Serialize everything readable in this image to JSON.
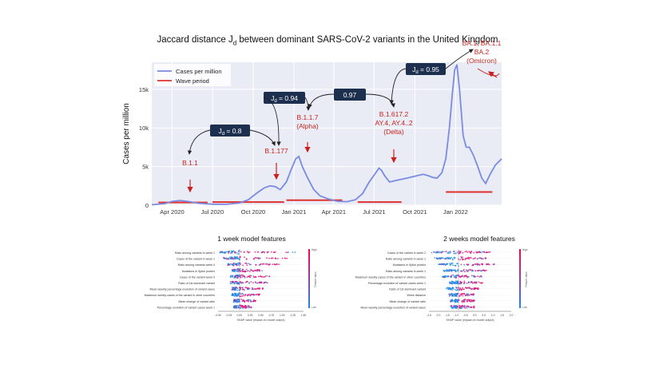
{
  "top_chart": {
    "title": "Jaccard distance J",
    "title_sub": "d",
    "title_rest": " between dominant SARS-CoV-2 variants in the United Kingdom",
    "ylabel": "Cases per million",
    "legend": [
      {
        "label": "Cases per million",
        "color": "#7b8be0"
      },
      {
        "label": "Wave period",
        "color": "#e0312f"
      }
    ],
    "colors": {
      "line": "#7b8be0",
      "wave": "#e0312f",
      "plot_bg": "#e9ecf5",
      "grid": "#ffffff",
      "box": "#1c2f4f",
      "variant": "#c8221e"
    },
    "variant_labels": [
      {
        "lines": [
          "B.1.1"
        ]
      },
      {
        "lines": [
          "B.1.177"
        ]
      },
      {
        "lines": [
          "B.1.1.7",
          "(Alpha)"
        ]
      },
      {
        "lines": [
          "B.1.617.2",
          "AY.4, AY.4..2",
          "(Delta)"
        ]
      },
      {
        "lines": [
          "BA.1, BA.1.1",
          "BA.2",
          "(Omicron)"
        ]
      }
    ],
    "jaccard_boxes": [
      {
        "main": "J",
        "sub": "d",
        "rest": " = 0.8"
      },
      {
        "main": "J",
        "sub": "d",
        "rest": " = 0.94"
      },
      {
        "main": "",
        "sub": "",
        "rest": "0.97"
      },
      {
        "main": "J",
        "sub": "d",
        "rest": " = 0.95"
      }
    ]
  },
  "chart_data": [
    {
      "type": "line",
      "title": "Jaccard distance Jd between dominant SARS-CoV-2 variants in the United Kingdom",
      "ylabel": "Cases per million",
      "xlabel": "",
      "x_ticks": [
        "Apr 2020",
        "Jul 2020",
        "Oct 2020",
        "Jan 2021",
        "Apr 2021",
        "Jul 2021",
        "Oct 2021",
        "Jan 2022"
      ],
      "y_ticks": [
        "0",
        "5k",
        "10k",
        "15k"
      ],
      "ylim": [
        0,
        18500
      ],
      "xlim": [
        "2020-02-15",
        "2022-04-15"
      ],
      "grid": true,
      "legend_position": "top-left",
      "series": [
        {
          "name": "Cases per million",
          "x": [
            "2020-02-15",
            "2020-03-15",
            "2020-04-01",
            "2020-04-20",
            "2020-05-10",
            "2020-06-01",
            "2020-07-01",
            "2020-08-01",
            "2020-09-01",
            "2020-09-20",
            "2020-10-10",
            "2020-10-25",
            "2020-11-08",
            "2020-11-20",
            "2020-12-01",
            "2020-12-15",
            "2020-12-25",
            "2021-01-05",
            "2021-01-12",
            "2021-01-20",
            "2021-02-01",
            "2021-02-15",
            "2021-03-01",
            "2021-03-20",
            "2021-04-10",
            "2021-05-01",
            "2021-05-20",
            "2021-06-05",
            "2021-06-20",
            "2021-07-05",
            "2021-07-12",
            "2021-07-18",
            "2021-07-25",
            "2021-08-05",
            "2021-08-20",
            "2021-09-05",
            "2021-09-20",
            "2021-10-05",
            "2021-10-20",
            "2021-11-01",
            "2021-11-10",
            "2021-11-20",
            "2021-12-01",
            "2021-12-10",
            "2021-12-18",
            "2021-12-24",
            "2021-12-30",
            "2022-01-04",
            "2022-01-10",
            "2022-01-18",
            "2022-01-25",
            "2022-02-01",
            "2022-02-10",
            "2022-02-20",
            "2022-03-01",
            "2022-03-10",
            "2022-03-20",
            "2022-04-01",
            "2022-04-15"
          ],
          "y": [
            50,
            200,
            500,
            600,
            450,
            250,
            120,
            100,
            300,
            700,
            1600,
            2200,
            2500,
            2400,
            2000,
            3000,
            4500,
            6000,
            6300,
            5000,
            3500,
            2000,
            1200,
            800,
            500,
            450,
            700,
            1500,
            3000,
            4200,
            4800,
            4500,
            3800,
            3000,
            3200,
            3400,
            3600,
            3800,
            4000,
            3800,
            3600,
            3500,
            4200,
            6000,
            10000,
            14000,
            17500,
            18200,
            15000,
            9000,
            7500,
            7500,
            6500,
            5000,
            3500,
            2800,
            4000,
            5200,
            6000
          ]
        },
        {
          "name": "Wave period",
          "segments": [
            {
              "x": [
                "2020-03-01",
                "2020-06-20"
              ],
              "y": 350
            },
            {
              "x": [
                "2020-07-01",
                "2020-12-10"
              ],
              "y": 400
            },
            {
              "x": [
                "2020-12-15",
                "2021-04-20"
              ],
              "y": 650
            },
            {
              "x": [
                "2021-05-25",
                "2021-09-01"
              ],
              "y": 400
            },
            {
              "x": [
                "2021-12-10",
                "2022-03-25"
              ],
              "y": 1700
            }
          ]
        }
      ]
    },
    {
      "type": "scatter",
      "title": "1 week model features",
      "xlabel": "SHAP value (impact on model output)",
      "colorbar": [
        "High",
        "Low"
      ],
      "colorbar_label": "Feature value",
      "x_ticks": [
        "-0.50",
        "-0.25",
        "0.00",
        "0.25",
        "0.50",
        "0.75",
        "1.00",
        "1.25",
        "1.50"
      ],
      "features": [
        "Ratio among variants in week 1",
        "Cases of the variant in week 1",
        "Ratio among variants week 0",
        "Mutations in Spike protein",
        "Cases of the variant week 0",
        "Ratio of 1st dominant variant",
        "Mean weekly percentage evolution of variant cases",
        "Maximum weekly cases of the variant in other countries",
        "Mean change of variant ratio",
        "Percentage evolution of variant cases week 1"
      ]
    },
    {
      "type": "scatter",
      "title": "2 weeks model features",
      "xlabel": "SHAP value (impact on model output)",
      "colorbar": [
        "High",
        "Low"
      ],
      "colorbar_label": "Feature value",
      "x_ticks": [
        "-2.5",
        "-2.0",
        "-1.5",
        "-1.0",
        "-0.5",
        "0.0",
        "0.5",
        "1.0",
        "1.5",
        "2.0"
      ],
      "features": [
        "Cases of the variant in week 2",
        "Ratio among variants in week 1",
        "Mutations in Spike protein",
        "Ratio among variants in week 1",
        "Maximum weekly cases of the variant in other countries",
        "Percentage evolution of variant cases week 1",
        "Ratio of 1st dominant variant",
        "Week distance",
        "Mean change of variant ratio",
        "Mean weekly percentage evolution of variant cases"
      ]
    }
  ]
}
